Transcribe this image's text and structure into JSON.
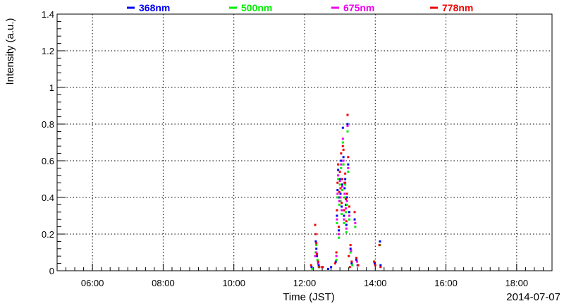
{
  "chart_data": {
    "type": "scatter",
    "xlabel": "Time (JST)",
    "ylabel": "Intensity (a.u.)",
    "date_label": "2014-07-07",
    "xlim": [
      "05:00",
      "19:00"
    ],
    "ylim": [
      0,
      1.4
    ],
    "grid": true,
    "legend_position": "top",
    "x_ticks": [
      "06:00",
      "08:00",
      "10:00",
      "12:00",
      "14:00",
      "16:00",
      "18:00"
    ],
    "y_ticks": [
      "0",
      "0.2",
      "0.4",
      "0.6",
      "0.8",
      "1",
      "1.2",
      "1.4"
    ],
    "series": [
      {
        "name": "368nm",
        "color": "#0000ee",
        "points": [
          [
            "12:12",
            0.02
          ],
          [
            "12:19",
            0.16
          ],
          [
            "12:20",
            0.12
          ],
          [
            "12:21",
            0.08
          ],
          [
            "12:23",
            0.05
          ],
          [
            "12:24",
            0.03
          ],
          [
            "12:30",
            0.02
          ],
          [
            "12:40",
            0.01
          ],
          [
            "12:45",
            0.02
          ],
          [
            "12:53",
            0.05
          ],
          [
            "12:55",
            0.3
          ],
          [
            "12:56",
            0.44
          ],
          [
            "12:57",
            0.55
          ],
          [
            "12:58",
            0.22
          ],
          [
            "12:59",
            0.4
          ],
          [
            "13:00",
            0.5
          ],
          [
            "13:01",
            0.42
          ],
          [
            "13:02",
            0.6
          ],
          [
            "13:03",
            0.35
          ],
          [
            "13:04",
            0.47
          ],
          [
            "13:05",
            0.78
          ],
          [
            "13:06",
            0.62
          ],
          [
            "13:07",
            0.3
          ],
          [
            "13:08",
            0.45
          ],
          [
            "13:09",
            0.5
          ],
          [
            "13:10",
            0.36
          ],
          [
            "13:11",
            0.25
          ],
          [
            "13:12",
            0.4
          ],
          [
            "13:13",
            0.8
          ],
          [
            "13:14",
            0.58
          ],
          [
            "13:16",
            0.32
          ],
          [
            "13:18",
            0.12
          ],
          [
            "13:20",
            0.04
          ],
          [
            "13:25",
            0.28
          ],
          [
            "13:28",
            0.06
          ],
          [
            "13:30",
            0.03
          ],
          [
            "13:59",
            0.04
          ],
          [
            "14:08",
            0.16
          ],
          [
            "14:09",
            0.03
          ]
        ]
      },
      {
        "name": "500nm",
        "color": "#00ee00",
        "points": [
          [
            "12:13",
            0.01
          ],
          [
            "12:19",
            0.1
          ],
          [
            "12:20",
            0.14
          ],
          [
            "12:22",
            0.06
          ],
          [
            "12:24",
            0.02
          ],
          [
            "12:54",
            0.06
          ],
          [
            "12:55",
            0.26
          ],
          [
            "12:56",
            0.4
          ],
          [
            "12:57",
            0.5
          ],
          [
            "12:58",
            0.18
          ],
          [
            "12:59",
            0.36
          ],
          [
            "13:00",
            0.47
          ],
          [
            "13:01",
            0.38
          ],
          [
            "13:02",
            0.56
          ],
          [
            "13:03",
            0.31
          ],
          [
            "13:04",
            0.44
          ],
          [
            "13:05",
            0.7
          ],
          [
            "13:06",
            0.58
          ],
          [
            "13:07",
            0.26
          ],
          [
            "13:08",
            0.4
          ],
          [
            "13:09",
            0.47
          ],
          [
            "13:10",
            0.32
          ],
          [
            "13:11",
            0.21
          ],
          [
            "13:12",
            0.36
          ],
          [
            "13:13",
            0.76
          ],
          [
            "13:14",
            0.54
          ],
          [
            "13:16",
            0.28
          ],
          [
            "13:18",
            0.1
          ],
          [
            "13:21",
            0.03
          ],
          [
            "13:26",
            0.24
          ],
          [
            "13:29",
            0.05
          ],
          [
            "14:08",
            0.14
          ]
        ]
      },
      {
        "name": "675nm",
        "color": "#ee00ee",
        "points": [
          [
            "12:18",
            0.08
          ],
          [
            "12:20",
            0.1
          ],
          [
            "12:23",
            0.04
          ],
          [
            "12:54",
            0.08
          ],
          [
            "12:55",
            0.28
          ],
          [
            "12:56",
            0.42
          ],
          [
            "12:57",
            0.52
          ],
          [
            "12:58",
            0.2
          ],
          [
            "12:59",
            0.38
          ],
          [
            "13:00",
            0.49
          ],
          [
            "13:01",
            0.4
          ],
          [
            "13:02",
            0.58
          ],
          [
            "13:03",
            0.33
          ],
          [
            "13:04",
            0.46
          ],
          [
            "13:05",
            0.72
          ],
          [
            "13:06",
            0.6
          ],
          [
            "13:07",
            0.28
          ],
          [
            "13:08",
            0.42
          ],
          [
            "13:09",
            0.48
          ],
          [
            "13:10",
            0.34
          ],
          [
            "13:11",
            0.23
          ],
          [
            "13:12",
            0.38
          ],
          [
            "13:13",
            0.79
          ],
          [
            "13:14",
            0.56
          ],
          [
            "13:16",
            0.3
          ],
          [
            "13:19",
            0.11
          ],
          [
            "13:26",
            0.26
          ],
          [
            "13:29",
            0.05
          ]
        ]
      },
      {
        "name": "778nm",
        "color": "#ee0000",
        "points": [
          [
            "12:11",
            0.03
          ],
          [
            "12:18",
            0.25
          ],
          [
            "12:19",
            0.2
          ],
          [
            "12:20",
            0.15
          ],
          [
            "12:21",
            0.09
          ],
          [
            "12:23",
            0.05
          ],
          [
            "12:25",
            0.02
          ],
          [
            "12:31",
            0.02
          ],
          [
            "12:52",
            0.04
          ],
          [
            "12:54",
            0.1
          ],
          [
            "12:55",
            0.33
          ],
          [
            "12:56",
            0.48
          ],
          [
            "12:57",
            0.58
          ],
          [
            "12:58",
            0.24
          ],
          [
            "12:59",
            0.43
          ],
          [
            "13:00",
            0.54
          ],
          [
            "13:01",
            0.45
          ],
          [
            "13:02",
            0.64
          ],
          [
            "13:03",
            0.37
          ],
          [
            "13:04",
            0.5
          ],
          [
            "13:05",
            0.68
          ],
          [
            "13:06",
            0.66
          ],
          [
            "13:07",
            0.33
          ],
          [
            "13:08",
            0.48
          ],
          [
            "13:09",
            0.53
          ],
          [
            "13:10",
            0.39
          ],
          [
            "13:11",
            0.27
          ],
          [
            "13:12",
            0.42
          ],
          [
            "13:13",
            0.85
          ],
          [
            "13:14",
            0.62
          ],
          [
            "13:15",
            0.08
          ],
          [
            "13:16",
            0.35
          ],
          [
            "13:17",
            0.02
          ],
          [
            "13:18",
            0.14
          ],
          [
            "13:20",
            0.05
          ],
          [
            "13:25",
            0.32
          ],
          [
            "13:28",
            0.07
          ],
          [
            "13:31",
            0.03
          ],
          [
            "13:58",
            0.05
          ],
          [
            "14:00",
            0.03
          ],
          [
            "14:07",
            0.14
          ],
          [
            "14:09",
            0.02
          ]
        ]
      }
    ]
  }
}
